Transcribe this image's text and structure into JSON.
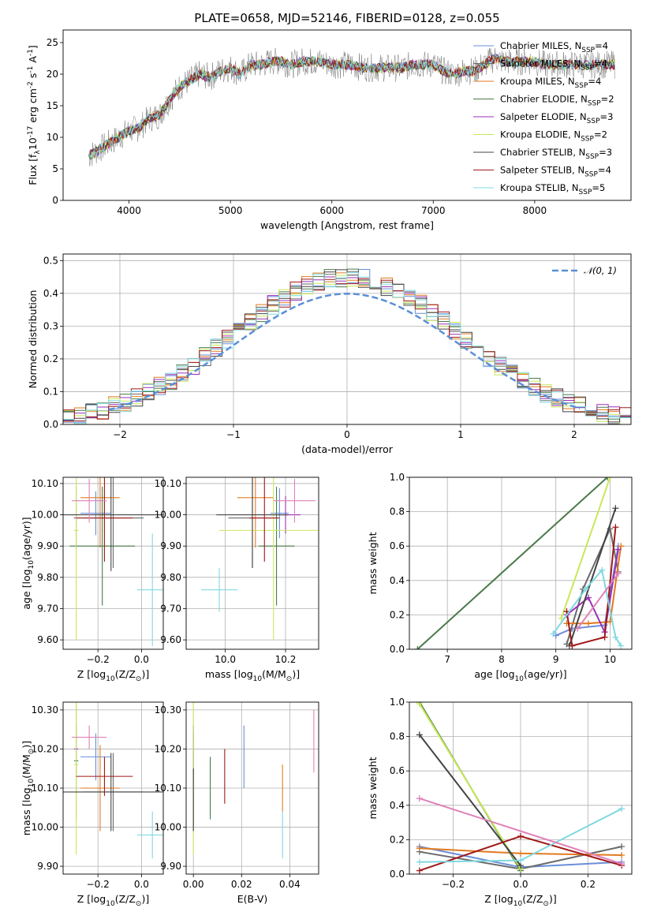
{
  "figure": {
    "title": "PLATE=0658, MJD=52146, FIBERID=0128, z=0.055"
  },
  "series_styles": [
    {
      "name": "Chabrier MILES, N$_{SSP}$=4",
      "color": "#6a8ed8"
    },
    {
      "name": "Salpeter MILES, N$_{SSP}$=4",
      "color": "#6a6a6a"
    },
    {
      "name": "Kroupa MILES, N$_{SSP}$=4",
      "color": "#e07a20"
    },
    {
      "name": "Chabrier ELODIE, N$_{SSP}$=2",
      "color": "#4a7a4a"
    },
    {
      "name": "Salpeter ELODIE, N$_{SSP}$=3",
      "color": "#9a30b8"
    },
    {
      "name": "Kroupa ELODIE, N$_{SSP}$=2",
      "color": "#c8e85a"
    },
    {
      "name": "Chabrier STELIB, N$_{SSP}$=3",
      "color": "#444444"
    },
    {
      "name": "Salpeter STELIB, N$_{SSP}$=4",
      "color": "#a01818"
    },
    {
      "name": "Kroupa STELIB, N$_{SSP}$=5",
      "color": "#80d8e0"
    }
  ],
  "chart_data": [
    {
      "id": "spectrum",
      "type": "line",
      "xlabel": "wavelength [Angstrom, rest frame]",
      "ylabel": "Flux [f$_\\lambda$10$^{-17}$ erg cm$^{-2}$ s$^{-1}$ A$^{-1}$]",
      "xlim": [
        3350,
        8950
      ],
      "ylim": [
        0,
        27
      ],
      "xticks": [
        4000,
        5000,
        6000,
        7000,
        8000
      ],
      "yticks": [
        0,
        5,
        10,
        15,
        20,
        25
      ],
      "legend": "right",
      "x": [
        3600,
        3700,
        3800,
        3900,
        4000,
        4100,
        4200,
        4300,
        4400,
        4500,
        4600,
        4700,
        4800,
        4900,
        5000,
        5100,
        5200,
        5300,
        5400,
        5500,
        5600,
        5700,
        5800,
        5900,
        6000,
        6100,
        6200,
        6300,
        6400,
        6500,
        6600,
        6700,
        6800,
        6900,
        7000,
        7100,
        7200,
        7300,
        7400,
        7500,
        7600,
        7700,
        7800,
        7900,
        8000,
        8100,
        8200,
        8300,
        8400,
        8500,
        8600,
        8700,
        8800
      ],
      "y": [
        7,
        8,
        9,
        10,
        11,
        11.5,
        13,
        13.5,
        16,
        18,
        19,
        20,
        19.5,
        20.5,
        21,
        20,
        21.5,
        21.5,
        22,
        22,
        21.5,
        22,
        22,
        22,
        21.5,
        21.5,
        21.5,
        21,
        21,
        21,
        21,
        21,
        21.5,
        21.5,
        21.5,
        20.5,
        20,
        20.5,
        20.5,
        21.5,
        22.5,
        22,
        22,
        22,
        22,
        21.5,
        21.5,
        21.5,
        21.5,
        21.5,
        21.5,
        21.5,
        21.5
      ]
    },
    {
      "id": "residuals",
      "type": "histogram",
      "xlabel": "(data-model)/error",
      "ylabel": "Normed distribution",
      "xlim": [
        -2.5,
        2.5
      ],
      "ylim": [
        0,
        0.52
      ],
      "xticks": [
        -2,
        -1,
        0,
        1,
        2
      ],
      "yticks": [
        0,
        0.1,
        0.2,
        0.3,
        0.4,
        0.5
      ],
      "legend": "top-right",
      "reference": {
        "name": "$\\mathcal{N}(0,1)$",
        "type": "normal",
        "mean": 0,
        "sd": 1
      },
      "bin_width": 0.1,
      "peak": 0.45
    },
    {
      "id": "age-vs-Z",
      "type": "errorbar",
      "xlabel": "Z [log$_{10}$(Z/Z$_\\odot$)]",
      "ylabel": "age  [log$_{10}$(age/yr)]",
      "xlim": [
        -0.36,
        0.1
      ],
      "ylim": [
        9.57,
        10.12
      ],
      "xticks": [
        -0.2,
        0.0
      ],
      "yticks": [
        9.6,
        9.7,
        9.8,
        9.9,
        10.0,
        10.1
      ],
      "points": [
        {
          "x": -0.21,
          "y": 10.005,
          "xerr": 0.07,
          "yerr": 0.07,
          "s": 0
        },
        {
          "x": -0.13,
          "y": 9.99,
          "xerr": 0.14,
          "yerr": 0.16,
          "s": 1
        },
        {
          "x": -0.19,
          "y": 10.055,
          "xerr": 0.09,
          "yerr": 0.16,
          "s": 2
        },
        {
          "x": -0.18,
          "y": 9.9,
          "xerr": 0.15,
          "yerr": 0.19,
          "s": 3
        },
        {
          "x": -0.3,
          "y": 9.99,
          "xerr": 0.01,
          "yerr": 0.1,
          "s": 4
        },
        {
          "x": -0.3,
          "y": 9.95,
          "xerr": 0.01,
          "yerr": 0.35,
          "s": 5
        },
        {
          "x": -0.14,
          "y": 10.0,
          "xerr": 0.24,
          "yerr": 0.18,
          "s": 6
        },
        {
          "x": -0.17,
          "y": 9.99,
          "xerr": 0.13,
          "yerr": 0.14,
          "s": 7
        },
        {
          "x": 0.05,
          "y": 9.76,
          "xerr": 0.07,
          "yerr": 0.18,
          "s": 8
        },
        {
          "x": -0.24,
          "y": 10.045,
          "xerr": 0.08,
          "yerr": 0.07,
          "s": 9
        }
      ]
    },
    {
      "id": "age-vs-mass",
      "type": "errorbar",
      "xlabel": "mass [log$_{10}$(M/M$_\\odot$)]",
      "ylabel": "",
      "xlim": [
        9.87,
        10.31
      ],
      "ylim": [
        9.57,
        10.12
      ],
      "xticks": [
        10.0,
        10.2
      ],
      "yticks": [
        9.6,
        9.7,
        9.8,
        9.9,
        10.0,
        10.1
      ],
      "points": [
        {
          "x": 10.18,
          "y": 10.005,
          "xerr": 0.03,
          "yerr": 0.08,
          "s": 0
        },
        {
          "x": 10.09,
          "y": 9.99,
          "xerr": 0.08,
          "yerr": 0.16,
          "s": 1
        },
        {
          "x": 10.1,
          "y": 10.055,
          "xerr": 0.06,
          "yerr": 0.16,
          "s": 2
        },
        {
          "x": 10.17,
          "y": 9.9,
          "xerr": 0.06,
          "yerr": 0.19,
          "s": 3
        },
        {
          "x": 10.2,
          "y": 10.0,
          "xerr": 0.05,
          "yerr": 0.06,
          "s": 4
        },
        {
          "x": 10.16,
          "y": 9.95,
          "xerr": 0.18,
          "yerr": 0.35,
          "s": 5
        },
        {
          "x": 10.09,
          "y": 10.0,
          "xerr": 0.12,
          "yerr": 0.17,
          "s": 6
        },
        {
          "x": 10.13,
          "y": 9.99,
          "xerr": 0.05,
          "yerr": 0.14,
          "s": 7
        },
        {
          "x": 9.98,
          "y": 9.76,
          "xerr": 0.06,
          "yerr": 0.07,
          "s": 8
        },
        {
          "x": 10.23,
          "y": 10.045,
          "xerr": 0.07,
          "yerr": 0.07,
          "s": 9
        }
      ]
    },
    {
      "id": "weight-vs-age",
      "type": "line",
      "xlabel": "age  [log$_{10}$(age/yr)]",
      "ylabel": "mass weight",
      "xlim": [
        6.3,
        10.4
      ],
      "ylim": [
        0,
        1
      ],
      "xticks": [
        7,
        8,
        9,
        10
      ],
      "yticks": [
        0,
        0.2,
        0.4,
        0.6,
        0.8,
        1.0
      ],
      "series": [
        {
          "s": 0,
          "x": [
            9.0,
            9.3,
            9.9,
            10.15
          ],
          "y": [
            0.08,
            0.12,
            0.14,
            0.6
          ]
        },
        {
          "s": 1,
          "x": [
            9.2,
            9.5,
            10.0,
            10.15
          ],
          "y": [
            0.03,
            0.35,
            0.7,
            0.45
          ]
        },
        {
          "s": 2,
          "x": [
            9.2,
            9.6,
            10.0,
            10.2
          ],
          "y": [
            0.15,
            0.15,
            0.16,
            0.6
          ]
        },
        {
          "s": 3,
          "x": [
            6.45,
            9.95
          ],
          "y": [
            0.0,
            1.0
          ]
        },
        {
          "s": 4,
          "x": [
            9.2,
            9.6,
            9.9,
            10.15
          ],
          "y": [
            0.2,
            0.3,
            0.1,
            0.58
          ]
        },
        {
          "s": 5,
          "x": [
            9.1,
            10.0
          ],
          "y": [
            0.18,
            1.0
          ]
        },
        {
          "s": 6,
          "x": [
            9.25,
            10.1
          ],
          "y": [
            0.02,
            0.82
          ]
        },
        {
          "s": 7,
          "x": [
            9.2,
            9.3,
            9.9,
            10.1
          ],
          "y": [
            0.22,
            0.02,
            0.07,
            0.71
          ]
        },
        {
          "s": 8,
          "x": [
            8.95,
            9.55,
            9.85,
            10.1,
            10.2
          ],
          "y": [
            0.09,
            0.35,
            0.46,
            0.07,
            0.02
          ]
        },
        {
          "s": 9,
          "x": [
            9.4,
            10.15
          ],
          "y": [
            0.12,
            0.44
          ]
        }
      ]
    },
    {
      "id": "mass-vs-Z",
      "type": "errorbar",
      "xlabel": "Z [log$_{10}$(Z/Z$_\\odot$)]",
      "ylabel": "mass [log$_{10}$(M/M$_\\odot$)]",
      "xlim": [
        -0.36,
        0.1
      ],
      "ylim": [
        9.88,
        10.32
      ],
      "xticks": [
        -0.2,
        0.0
      ],
      "yticks": [
        9.9,
        10.0,
        10.1,
        10.2,
        10.3
      ],
      "points": [
        {
          "x": -0.21,
          "y": 10.18,
          "xerr": 0.07,
          "yerr": 0.06,
          "s": 0
        },
        {
          "x": -0.13,
          "y": 10.09,
          "xerr": 0.14,
          "yerr": 0.1,
          "s": 1
        },
        {
          "x": -0.19,
          "y": 10.1,
          "xerr": 0.09,
          "yerr": 0.11,
          "s": 2
        },
        {
          "x": -0.3,
          "y": 10.17,
          "xerr": 0.01,
          "yerr": 0.15,
          "s": 3
        },
        {
          "x": -0.3,
          "y": 10.2,
          "xerr": 0.01,
          "yerr": 0.06,
          "s": 4
        },
        {
          "x": -0.3,
          "y": 10.16,
          "xerr": 0.01,
          "yerr": 0.23,
          "s": 5
        },
        {
          "x": -0.14,
          "y": 10.09,
          "xerr": 0.24,
          "yerr": 0.1,
          "s": 6
        },
        {
          "x": -0.17,
          "y": 10.13,
          "xerr": 0.13,
          "yerr": 0.05,
          "s": 7
        },
        {
          "x": 0.05,
          "y": 9.98,
          "xerr": 0.07,
          "yerr": 0.06,
          "s": 8
        },
        {
          "x": -0.24,
          "y": 10.23,
          "xerr": 0.08,
          "yerr": 0.03,
          "s": 9
        }
      ]
    },
    {
      "id": "mass-vs-EBV",
      "type": "errorbar",
      "xlabel": "E(B-V)",
      "ylabel": "",
      "xlim": [
        -0.003,
        0.052
      ],
      "ylim": [
        9.88,
        10.32
      ],
      "xticks": [
        0.0,
        0.02,
        0.04
      ],
      "yticks": [
        9.9,
        10.0,
        10.1,
        10.2,
        10.3
      ],
      "points": [
        {
          "x": 0.0,
          "y": 10.18,
          "xerr": 0,
          "yerr": 0.06,
          "s": 0
        },
        {
          "x": 0.0,
          "y": 10.09,
          "xerr": 0,
          "yerr": 0.1,
          "s": 1
        },
        {
          "x": 0.037,
          "y": 10.1,
          "xerr": 0,
          "yerr": 0.06,
          "s": 2
        },
        {
          "x": 0.007,
          "y": 10.1,
          "xerr": 0,
          "yerr": 0.08,
          "s": 3
        },
        {
          "x": 0.0,
          "y": 10.2,
          "xerr": 0,
          "yerr": 0.06,
          "s": 4
        },
        {
          "x": 0.0,
          "y": 10.14,
          "xerr": 0,
          "yerr": 0.21,
          "s": 5
        },
        {
          "x": 0.0,
          "y": 10.07,
          "xerr": 0,
          "yerr": 0.08,
          "s": 6
        },
        {
          "x": 0.013,
          "y": 10.13,
          "xerr": 0,
          "yerr": 0.07,
          "s": 7
        },
        {
          "x": 0.037,
          "y": 9.98,
          "xerr": 0,
          "yerr": 0.06,
          "s": 8
        },
        {
          "x": 0.05,
          "y": 10.22,
          "xerr": 0,
          "yerr": 0.08,
          "s": 9
        },
        {
          "x": 0.021,
          "y": 10.18,
          "xerr": 0,
          "yerr": 0.08,
          "s": 0
        }
      ]
    },
    {
      "id": "weight-vs-Z",
      "type": "line",
      "xlabel": "Z [log$_{10}$(Z/Z$_\\odot$)]",
      "ylabel": "mass weight",
      "xlim": [
        -0.33,
        0.33
      ],
      "ylim": [
        0,
        1
      ],
      "xticks": [
        -0.2,
        0.0,
        0.2
      ],
      "yticks": [
        0,
        0.2,
        0.4,
        0.6,
        0.8,
        1.0
      ],
      "series": [
        {
          "s": 0,
          "x": [
            -0.3,
            0.0,
            0.3
          ],
          "y": [
            0.16,
            0.04,
            0.07
          ]
        },
        {
          "s": 1,
          "x": [
            -0.3,
            0.0,
            0.3
          ],
          "y": [
            0.13,
            0.03,
            0.16
          ]
        },
        {
          "s": 2,
          "x": [
            -0.3,
            0.0,
            0.3
          ],
          "y": [
            0.15,
            0.12,
            0.11
          ]
        },
        {
          "s": 3,
          "x": [
            -0.3,
            0.0
          ],
          "y": [
            1.0,
            0.02
          ]
        },
        {
          "s": 5,
          "x": [
            -0.3,
            0.0
          ],
          "y": [
            0.99,
            0.03
          ]
        },
        {
          "s": 6,
          "x": [
            -0.3,
            0.0
          ],
          "y": [
            0.81,
            0.05
          ]
        },
        {
          "s": 7,
          "x": [
            -0.3,
            0.0,
            0.3
          ],
          "y": [
            0.02,
            0.22,
            0.05
          ]
        },
        {
          "s": 8,
          "x": [
            -0.3,
            0.0,
            0.3
          ],
          "y": [
            0.07,
            0.08,
            0.38
          ]
        },
        {
          "s": 9,
          "x": [
            -0.3,
            0.3
          ],
          "y": [
            0.44,
            0.06
          ]
        }
      ]
    }
  ]
}
